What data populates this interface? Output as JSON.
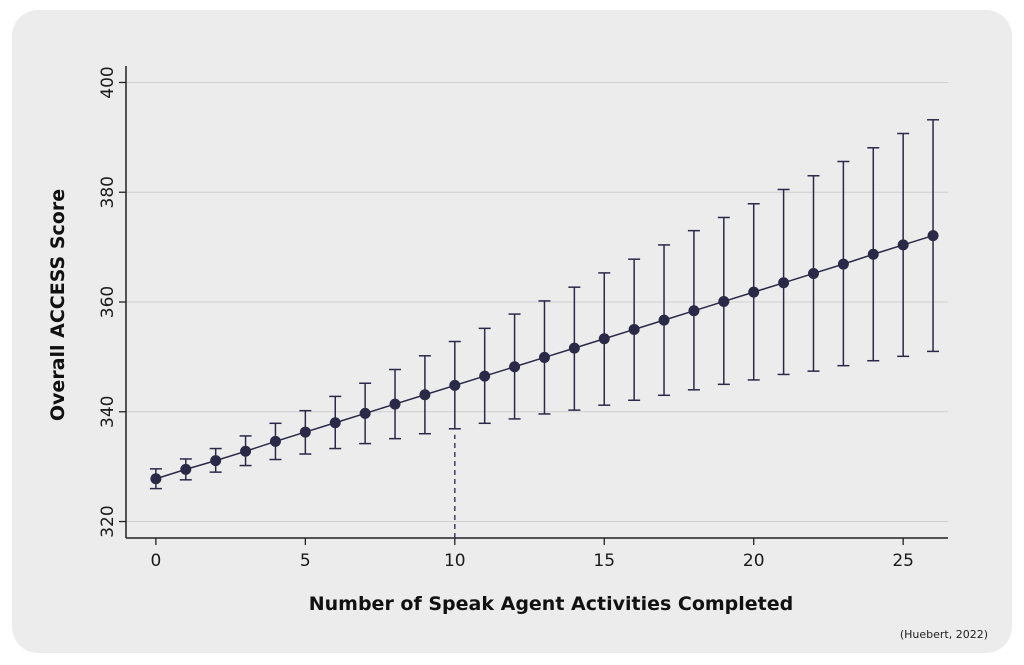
{
  "chart_data": {
    "type": "line",
    "xlabel": "Number of Speak Agent Activities Completed",
    "ylabel": "Overall ACCESS Score",
    "xlim": [
      -1,
      26.5
    ],
    "ylim": [
      317,
      403
    ],
    "xticks": [
      0,
      5,
      10,
      15,
      20,
      25
    ],
    "yticks": [
      320,
      340,
      360,
      380,
      400
    ],
    "grid": "horizontal",
    "reference_x": 10,
    "series": [
      {
        "x": [
          0,
          1,
          2,
          3,
          4,
          5,
          6,
          7,
          8,
          9,
          10,
          11,
          12,
          13,
          14,
          15,
          16,
          17,
          18,
          19,
          20,
          21,
          22,
          23,
          24,
          25,
          26
        ],
        "y": [
          327.8,
          329.5,
          331.1,
          332.8,
          334.6,
          336.3,
          338.0,
          339.7,
          341.4,
          343.1,
          344.8,
          346.5,
          348.2,
          349.9,
          351.6,
          353.3,
          355.0,
          356.7,
          358.4,
          360.1,
          361.8,
          363.5,
          365.2,
          366.9,
          368.7,
          370.4,
          372.1
        ],
        "lower": [
          326.0,
          327.6,
          329.0,
          330.2,
          331.3,
          332.3,
          333.3,
          334.2,
          335.1,
          336.0,
          336.9,
          337.9,
          338.7,
          339.6,
          340.3,
          341.2,
          342.1,
          343.0,
          344.0,
          345.0,
          345.8,
          346.8,
          347.4,
          348.4,
          349.3,
          350.1,
          351.0
        ],
        "upper": [
          329.6,
          331.4,
          333.3,
          335.6,
          337.9,
          340.2,
          342.8,
          345.2,
          347.7,
          350.2,
          352.8,
          355.2,
          357.8,
          360.2,
          362.7,
          365.3,
          367.8,
          370.4,
          373.0,
          375.4,
          377.9,
          380.5,
          383.0,
          385.6,
          388.1,
          390.7,
          393.2
        ]
      }
    ]
  },
  "citation": "(Huebert, 2022)",
  "colors": {
    "marker": "#2a2948",
    "line": "#2a2948",
    "grid": "#cfcfcf",
    "reference": "#3d3c62"
  }
}
